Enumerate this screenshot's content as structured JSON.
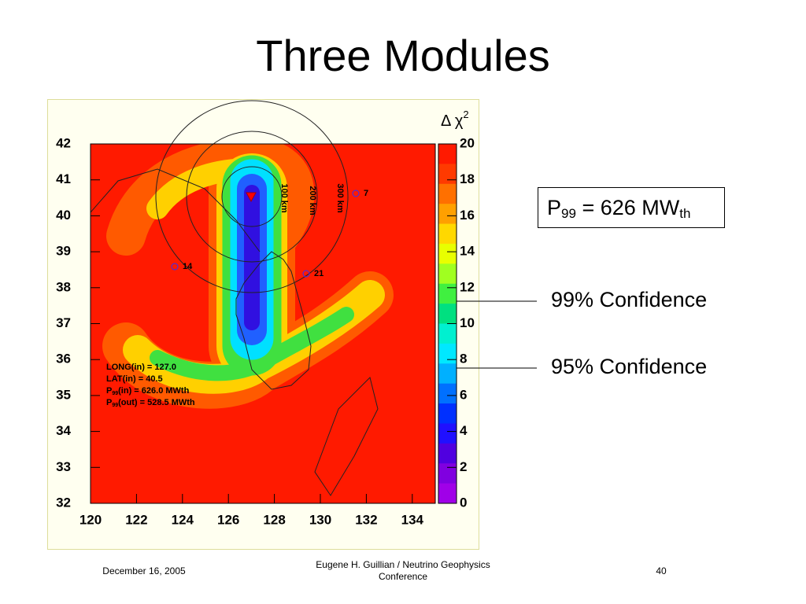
{
  "title": "Three Modules",
  "figure": {
    "colorbar_title": {
      "symbol": "Δ χ",
      "superscript": "2"
    },
    "y_ticks": [
      "42",
      "41",
      "40",
      "39",
      "38",
      "37",
      "36",
      "35",
      "34",
      "33",
      "32"
    ],
    "x_ticks": [
      "120",
      "122",
      "124",
      "126",
      "128",
      "130",
      "132",
      "134"
    ],
    "colorbar_ticks": [
      "20",
      "18",
      "16",
      "14",
      "12",
      "10",
      "8",
      "6",
      "4",
      "2",
      "0"
    ],
    "circle_labels": [
      "100 km",
      "200 km",
      "300 km"
    ],
    "site_labels": [
      "7",
      "14",
      "21"
    ],
    "info": [
      {
        "text": "LONG(in) = 127.0"
      },
      {
        "text": "LAT(in) = 40.5"
      },
      {
        "main": "P",
        "sub": "99",
        "rest": "(in) =  626.0 MWth"
      },
      {
        "main": "P",
        "sub": "99",
        "rest": "(out) =  528.5 MWth"
      }
    ]
  },
  "result_box": {
    "main": "P",
    "sub": "99",
    "rest": " = 626 MW",
    "sub2": "th"
  },
  "confidence_labels": [
    "99% Confidence",
    "95% Confidence"
  ],
  "footer": {
    "date": "December 16, 2005",
    "author": "Eugene H. Guillian / Neutrino Geophysics",
    "author_line2": "Conference",
    "page": "40"
  }
}
